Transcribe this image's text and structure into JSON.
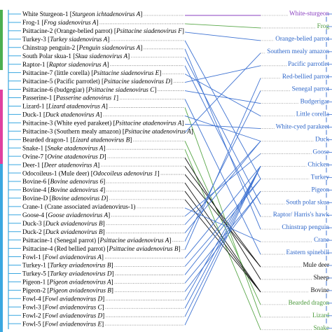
{
  "left_leaves": [
    {
      "host": "White Sturgeon-1",
      "virus": "Sturgeon ichtadenovirus A"
    },
    {
      "host": "Frog-1",
      "virus": "Frog siadenovirus A"
    },
    {
      "host": "Psittacine-2 (Orange-belied parrot)",
      "virus": "Psittacine siadenovirus F"
    },
    {
      "host": "Turkey-3",
      "virus": "Turkey siadenovirus A"
    },
    {
      "host": "Chinstrap penguin-2",
      "virus": "Penguin siadenovirus A"
    },
    {
      "host": "South Polar skua-1",
      "virus": "Skua siadenovirus A"
    },
    {
      "host": "Raptor-1",
      "virus": "Raptor siadenovirus A"
    },
    {
      "host": "Psittacine-7 (little corella)",
      "virus": "Psittacine siadenovirus E"
    },
    {
      "host": "Psittacine-5 (Pacific parrotlet)",
      "virus": "Psittacine siadenovirus D"
    },
    {
      "host": "Psittacine-6 (budgegiar)",
      "virus": "Psittacine siadenovirus C"
    },
    {
      "host": "Passerine-1",
      "virus": "Passerine adenovirus 1"
    },
    {
      "host": "Lizard-1",
      "virus": "Lizard atadenovirus A"
    },
    {
      "host": "Duck-1",
      "virus": "Duck atadenovirus A"
    },
    {
      "host": "Psittacine-3 (White eyed parakeet)",
      "virus": "Psittacine atadenovirus A"
    },
    {
      "host": "Psittacine-3 (Southern mealy amazon)",
      "virus": "Psittacine atadenovirus A"
    },
    {
      "host": "Bearded dragon-1",
      "virus": "Lizard atadenovirus B"
    },
    {
      "host": "Snake-1",
      "virus": "Snake atadenovirus A"
    },
    {
      "host": "Ovine-7",
      "virus": "Ovine atadenovirus D"
    },
    {
      "host": "Deer-1",
      "virus": "Deer atadenovirus A"
    },
    {
      "host": "Odocoileus-1 (Mule deer)",
      "virus": "Odocoileus adenovirus 1"
    },
    {
      "host": "Bovine-6",
      "virus": "Bovine adenovirus 6"
    },
    {
      "host": "Bovine-4",
      "virus": "Bovine adenovirus 4"
    },
    {
      "host": "Bovine-D",
      "virus": "Bovine adenovirus D"
    },
    {
      "host": "Crane-1 (Crane associated aviadenovirus-1)",
      "virus": ""
    },
    {
      "host": "Goose-4",
      "virus": "Goose aviadenovirus A"
    },
    {
      "host": "Duck-3",
      "virus": "Duck aviadenovirus B"
    },
    {
      "host": "Duck-2",
      "virus": "Duck aviadenovirus B"
    },
    {
      "host": "Psittacine-1 (Senegal parrot)",
      "virus": "Psittacine aviadenovirus A"
    },
    {
      "host": "Psittacine-4 (Red bellied parrot)",
      "virus": "Psittacine aviadenovirus B"
    },
    {
      "host": "Fowl-1",
      "virus": "Fowl aviadenovirus A"
    },
    {
      "host": "Turkey-1",
      "virus": "Turkey aviadenovirus B"
    },
    {
      "host": "Turkey-5",
      "virus": "Turkey aviadenovirus D"
    },
    {
      "host": "Pigeon-1",
      "virus": "Pigeon aviadenovirus A"
    },
    {
      "host": "Pigeon-2",
      "virus": "Pigeon aviadenovirus B"
    },
    {
      "host": "Fowl-4",
      "virus": "Fowl aviadenovirus D"
    },
    {
      "host": "Fowl-3",
      "virus": "Fowl aviadenovirus C"
    },
    {
      "host": "Fowl-2",
      "virus": "Fowl aviadenovirus D"
    },
    {
      "host": "Fowl-5",
      "virus": "Fowl aviadenovirus E"
    }
  ],
  "right_leaves": [
    {
      "label": "White-sturgeon",
      "color": "#8a3fc0"
    },
    {
      "label": "Frog",
      "color": "#4c9a3c"
    },
    {
      "label": "Orange-belied parrot",
      "color": "#2f67c9"
    },
    {
      "label": "Southern mealy amazon",
      "color": "#2f67c9"
    },
    {
      "label": "Pacific parrotlet",
      "color": "#2f67c9"
    },
    {
      "label": "Red-bellied parrot",
      "color": "#2f67c9"
    },
    {
      "label": "Senegal parrot",
      "color": "#2f67c9"
    },
    {
      "label": "Budgerigar",
      "color": "#2f67c9"
    },
    {
      "label": "Little corella",
      "color": "#2f67c9"
    },
    {
      "label": "White-cyed parakeet",
      "color": "#2f67c9"
    },
    {
      "label": "Duck",
      "color": "#2f67c9"
    },
    {
      "label": "Goose",
      "color": "#2f67c9"
    },
    {
      "label": "Chicken",
      "color": "#2f67c9"
    },
    {
      "label": "Turkey",
      "color": "#2f67c9"
    },
    {
      "label": "Pigeon",
      "color": "#2f67c9"
    },
    {
      "label": "South polar skua",
      "color": "#2f67c9"
    },
    {
      "label": "Raptor/ Harris's hawk",
      "color": "#2f67c9"
    },
    {
      "label": "Chinstrap penguin",
      "color": "#2f67c9"
    },
    {
      "label": "Crane",
      "color": "#2f67c9"
    },
    {
      "label": "Eastern spinebill",
      "color": "#2f67c9"
    },
    {
      "label": "Mule deer",
      "color": "#111111"
    },
    {
      "label": "Sheep",
      "color": "#111111"
    },
    {
      "label": "Bovine",
      "color": "#111111"
    },
    {
      "label": "Bearded dragon",
      "color": "#4c9a3c"
    },
    {
      "label": "Lizard",
      "color": "#4c9a3c"
    },
    {
      "label": "Snake",
      "color": "#4c9a3c"
    }
  ],
  "colors": {
    "avian_link": "#3f73d2",
    "mammal_link": "#111111",
    "reptile_link": "#5aa84a",
    "sturgeon_link": "#8a3fc0",
    "left_tree_band": "#3aa7e0",
    "green_band": "#4caf50",
    "pink_band": "#e040a0"
  }
}
